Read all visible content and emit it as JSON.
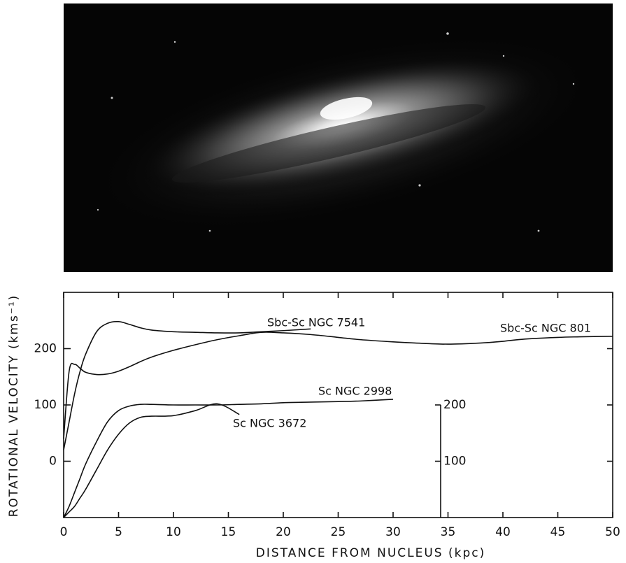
{
  "chart_data": {
    "type": "line",
    "xlabel": "DISTANCE FROM NUCLEUS   (kpc)",
    "ylabel": "ROTATIONAL VELOCITY (kms⁻¹)",
    "x": [
      0,
      0.5,
      1,
      1.5,
      2,
      3,
      4,
      5,
      6,
      7,
      8,
      10,
      12,
      14,
      16,
      18,
      20,
      22.5,
      25,
      27,
      30,
      32,
      35,
      38,
      40,
      42,
      45,
      47,
      50
    ],
    "xlim": [
      0,
      50
    ],
    "xticks": [
      0,
      5,
      10,
      15,
      20,
      25,
      30,
      35,
      40,
      45,
      50
    ],
    "ylim": [
      -100,
      300
    ],
    "yticks": [
      0,
      100,
      200
    ],
    "y2lim": [
      0,
      400
    ],
    "y2ticks": [
      100,
      200
    ],
    "series": [
      {
        "name": "Sbc-Sc NGC 7541",
        "color": "#111111",
        "values": [
          20,
          70,
          120,
          160,
          190,
          230,
          245,
          248,
          243,
          237,
          233,
          230,
          229,
          228,
          228,
          230,
          232,
          235,
          null,
          null,
          null,
          null,
          null,
          null,
          null,
          null,
          null,
          null,
          null
        ]
      },
      {
        "name": "Sbc-Sc  NGC 801",
        "color": "#111111",
        "values": [
          40,
          160,
          172,
          165,
          158,
          154,
          155,
          160,
          168,
          177,
          185,
          197,
          207,
          216,
          223,
          229,
          228,
          225,
          220,
          216,
          212,
          210,
          208,
          210,
          213,
          217,
          220,
          221,
          222
        ]
      },
      {
        "name": "Sc NGC 2998",
        "color": "#111111",
        "axis": "y2",
        "values": [
          0,
          20,
          45,
          70,
          95,
          135,
          170,
          190,
          198,
          201,
          201,
          200,
          200,
          200,
          201,
          202,
          204,
          205,
          206,
          207,
          210,
          null,
          null,
          null,
          null,
          null,
          null,
          null,
          null
        ]
      },
      {
        "name": "Sc NGC 3672",
        "color": "#111111",
        "axis": "y2",
        "values": [
          0,
          10,
          20,
          35,
          50,
          85,
          120,
          148,
          168,
          178,
          180,
          181,
          190,
          202,
          183,
          null,
          null,
          null,
          null,
          null,
          null,
          null,
          null,
          null,
          null,
          null,
          null,
          null,
          null
        ]
      }
    ]
  }
}
